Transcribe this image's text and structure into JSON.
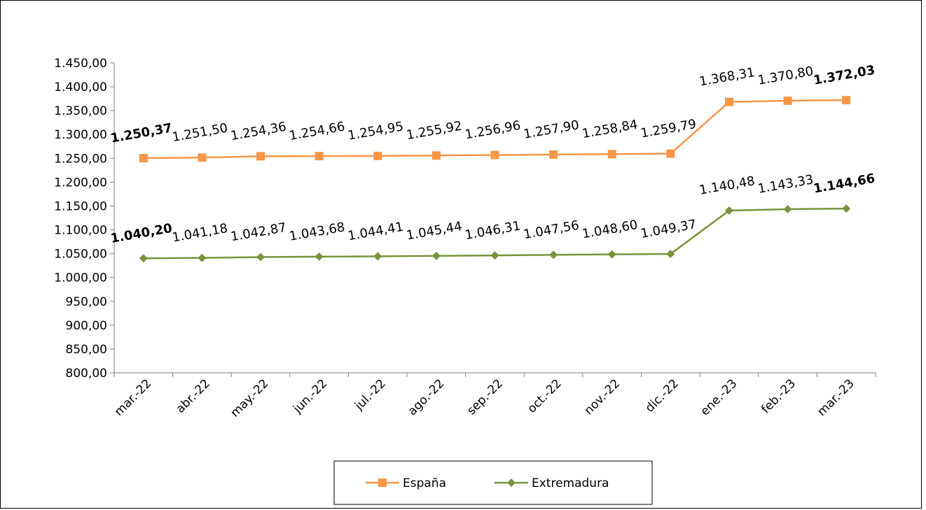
{
  "chart_data": {
    "type": "line",
    "categories": [
      "mar.-22",
      "abr.-22",
      "may.-22",
      "jun.-22",
      "jul.-22",
      "ago.-22",
      "sep.-22",
      "oct.-22",
      "nov.-22",
      "dic.-22",
      "ene.-23",
      "feb.-23",
      "mar.-23"
    ],
    "series": [
      {
        "name": "España",
        "color": "#F79646",
        "marker": "square",
        "values": [
          1250.37,
          1251.5,
          1254.36,
          1254.66,
          1254.95,
          1255.92,
          1256.96,
          1257.9,
          1258.84,
          1259.79,
          1368.31,
          1370.8,
          1372.03
        ],
        "labels": [
          "1.250,37",
          "1.251,50",
          "1.254,36",
          "1.254,66",
          "1.254,95",
          "1.255,92",
          "1.256,96",
          "1.257,90",
          "1.258,84",
          "1.259,79",
          "1.368,31",
          "1.370,80",
          "1.372,03"
        ],
        "bold_labels": [
          0,
          12
        ]
      },
      {
        "name": "Extremadura",
        "color": "#77933C",
        "marker": "diamond",
        "values": [
          1040.2,
          1041.18,
          1042.87,
          1043.68,
          1044.41,
          1045.44,
          1046.31,
          1047.56,
          1048.6,
          1049.37,
          1140.48,
          1143.33,
          1144.66
        ],
        "labels": [
          "1.040,20",
          "1.041,18",
          "1.042,87",
          "1.043,68",
          "1.044,41",
          "1.045,44",
          "1.046,31",
          "1.047,56",
          "1.048,60",
          "1.049,37",
          "1.140,48",
          "1.143,33",
          "1.144,66"
        ],
        "bold_labels": [
          0,
          12
        ]
      }
    ],
    "ylim": [
      800,
      1450
    ],
    "ytick_step": 50,
    "ytick_labels": [
      "800,00",
      "850,00",
      "900,00",
      "950,00",
      "1.000,00",
      "1.050,00",
      "1.100,00",
      "1.150,00",
      "1.200,00",
      "1.250,00",
      "1.300,00",
      "1.350,00",
      "1.400,00",
      "1.450,00"
    ],
    "grid": false,
    "legend_position": "bottom",
    "title": "",
    "xlabel": "",
    "ylabel": ""
  }
}
